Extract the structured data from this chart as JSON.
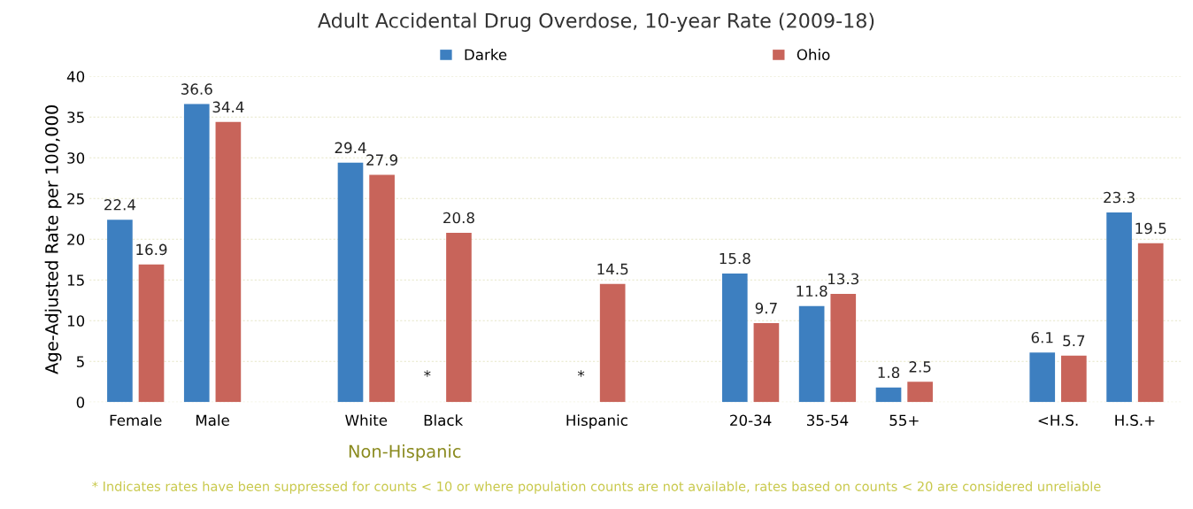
{
  "chart_data": {
    "type": "bar",
    "title": "Adult Accidental Drug Overdose, 10-year Rate (2009-18)",
    "ylabel": "Age-Adjusted Rate per 100,000",
    "categories": [
      "Female",
      "Male",
      null,
      "White",
      "Black",
      null,
      "Hispanic",
      null,
      "20-34",
      "35-54",
      "55+",
      null,
      "<H.S.",
      "H.S.+"
    ],
    "series": [
      {
        "name": "Darke",
        "color": "#3d7fc0",
        "values": [
          22.4,
          36.6,
          null,
          29.4,
          null,
          null,
          null,
          null,
          15.8,
          11.8,
          1.8,
          null,
          6.1,
          23.3
        ],
        "value_labels": [
          "22.4",
          "36.6",
          null,
          "29.4",
          "*",
          null,
          "*",
          null,
          "15.8",
          "11.8",
          "1.8",
          null,
          "6.1",
          "23.3"
        ]
      },
      {
        "name": "Ohio",
        "color": "#c8645a",
        "values": [
          16.9,
          34.4,
          null,
          27.9,
          20.8,
          null,
          14.5,
          null,
          9.7,
          13.3,
          2.5,
          null,
          5.7,
          19.5
        ],
        "value_labels": [
          "16.9",
          "34.4",
          null,
          "27.9",
          "20.8",
          null,
          "14.5",
          null,
          "9.7",
          "13.3",
          "2.5",
          null,
          "5.7",
          "19.5"
        ]
      }
    ],
    "ylim": [
      0,
      40
    ],
    "yticks": [
      0,
      5,
      10,
      15,
      20,
      25,
      30,
      35,
      40
    ],
    "grid": "y",
    "legend": "top",
    "annotations": [
      "Non-Hispanic",
      "* Indicates rates have been suppressed for counts < 10 or where population counts are not available, rates based on counts < 20 are considered unreliable"
    ]
  }
}
